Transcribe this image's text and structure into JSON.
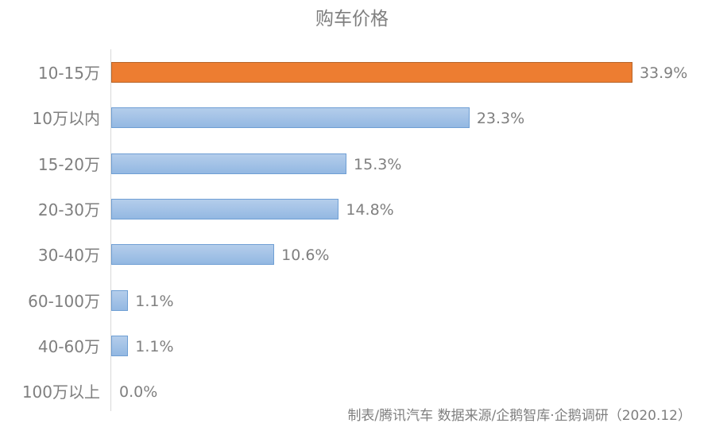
{
  "title": "购车价格",
  "source": "制表/腾讯汽车 数据来源/企鹅智库·企鹅调研（2020.12）",
  "highlight_color": "#ed7d31",
  "bar_color": "#9dbfe5",
  "chart_data": {
    "type": "bar",
    "orientation": "horizontal",
    "title": "购车价格",
    "categories": [
      "10-15万",
      "10万以内",
      "15-20万",
      "20-30万",
      "30-40万",
      "60-100万",
      "40-60万",
      "100万以上"
    ],
    "values": [
      33.9,
      23.3,
      15.3,
      14.8,
      10.6,
      1.1,
      1.1,
      0.0
    ],
    "value_labels": [
      "33.9%",
      "23.3%",
      "15.3%",
      "14.8%",
      "10.6%",
      "1.1%",
      "1.1%",
      "0.0%"
    ],
    "highlighted_index": 0,
    "xlabel": "",
    "ylabel": "",
    "grid": false,
    "legend": "none",
    "annotation": "制表/腾讯汽车 数据来源/企鹅智库·企鹅调研（2020.12）"
  }
}
